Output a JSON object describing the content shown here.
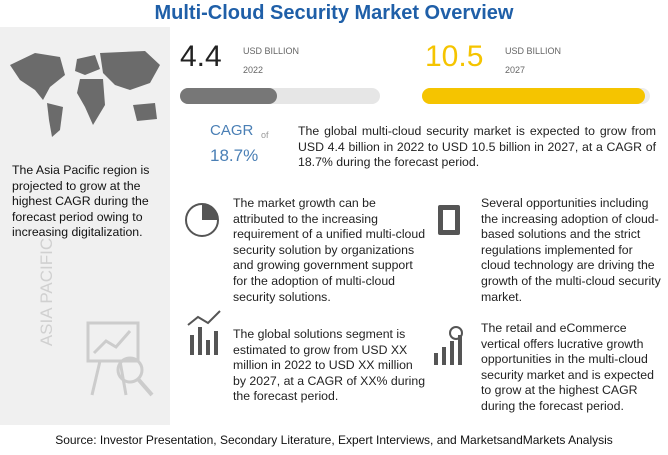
{
  "header": {
    "title": "Multi-Cloud Security Market Overview"
  },
  "market": {
    "start": {
      "value": "4.4",
      "unit": "USD BILLION",
      "year": "2022"
    },
    "end": {
      "value": "10.5",
      "unit": "USD BILLION",
      "year": "2027"
    }
  },
  "cagr": {
    "label": "CAGR",
    "of": "of",
    "value": "18.7%"
  },
  "summary": "The global multi-cloud security market is expected to grow from USD 4.4 billion in 2022 to USD 10.5 billion in 2027, at a CAGR of 18.7% during the forecast period.",
  "region": {
    "label": "ASIA PACIFIC",
    "text": "The Asia Pacific region is projected to grow at the highest CAGR during the forecast period owing to increasing digitalization."
  },
  "highlights": [
    "The market growth can be attributed to the increasing requirement of a unified multi-cloud security solution by organizations and growing government support for the adoption of multi-cloud security solutions.",
    "Several opportunities including the increasing adoption of cloud-based solutions and the strict regulations implemented for cloud technology are driving the growth of the multi-cloud security market.",
    "The global solutions segment is estimated to grow from USD XX million in 2022 to USD XX million by 2027, at a CAGR of XX% during the forecast period.",
    "The retail and eCommerce vertical offers lucrative growth opportunities in the multi-cloud security market and is expected to grow at the highest CAGR during the forecast period."
  ],
  "source": "Source: Investor Presentation, Secondary Literature, Expert Interviews, and MarketsandMarkets Analysis"
}
